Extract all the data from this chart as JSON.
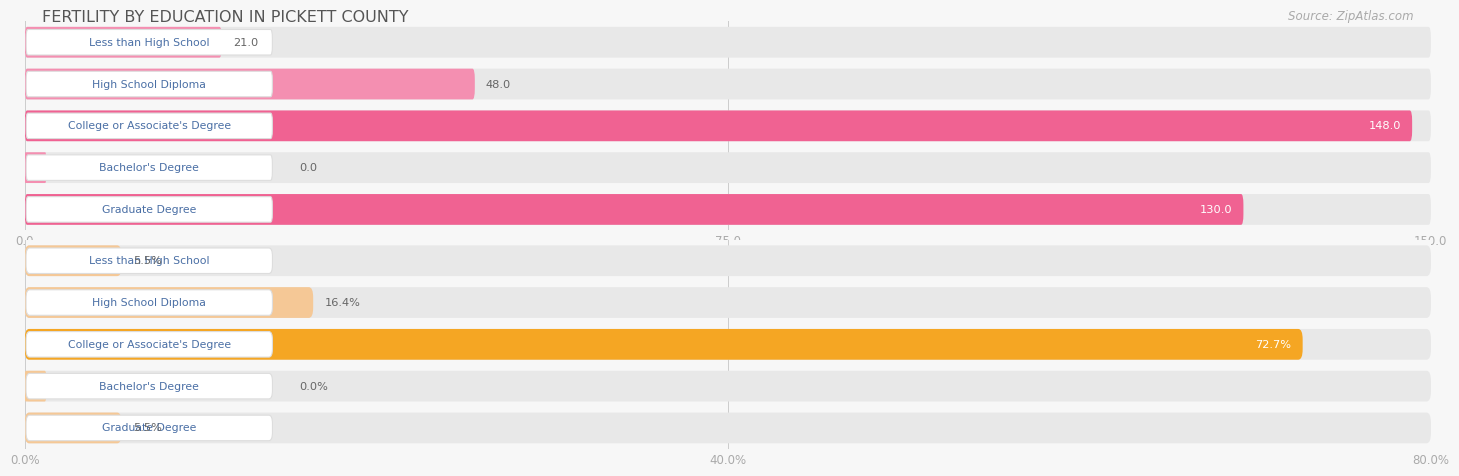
{
  "title": "FERTILITY BY EDUCATION IN PICKETT COUNTY",
  "source": "Source: ZipAtlas.com",
  "top_section": {
    "categories": [
      "Less than High School",
      "High School Diploma",
      "College or Associate's Degree",
      "Bachelor's Degree",
      "Graduate Degree"
    ],
    "values": [
      21.0,
      48.0,
      148.0,
      0.0,
      130.0
    ],
    "value_labels": [
      "21.0",
      "48.0",
      "148.0",
      "0.0",
      "130.0"
    ],
    "xlim": [
      0,
      150.0
    ],
    "xticks": [
      0.0,
      75.0,
      150.0
    ],
    "xtick_labels": [
      "0.0",
      "75.0",
      "150.0"
    ],
    "bar_colors": [
      "#f48fb1",
      "#f48fb1",
      "#f06292",
      "#f48fb1",
      "#f06292"
    ],
    "bar_bg_color": "#f0d0dc",
    "value_inside": [
      false,
      false,
      true,
      false,
      true
    ]
  },
  "bottom_section": {
    "categories": [
      "Less than High School",
      "High School Diploma",
      "College or Associate's Degree",
      "Bachelor's Degree",
      "Graduate Degree"
    ],
    "values": [
      5.5,
      16.4,
      72.7,
      0.0,
      5.5
    ],
    "value_labels": [
      "5.5%",
      "16.4%",
      "72.7%",
      "0.0%",
      "5.5%"
    ],
    "xlim": [
      0,
      80.0
    ],
    "xticks": [
      0.0,
      40.0,
      80.0
    ],
    "xtick_labels": [
      "0.0%",
      "40.0%",
      "80.0%"
    ],
    "bar_colors": [
      "#f5c896",
      "#f5c896",
      "#f5a623",
      "#f5c896",
      "#f5c896"
    ],
    "bar_bg_color": "#f0dcc0",
    "value_inside": [
      false,
      false,
      true,
      false,
      false
    ]
  },
  "bg_color": "#f7f7f7",
  "bar_row_bg": "#eeeeee",
  "label_box_color": "#ffffff",
  "label_text_color": "#4a6fa5",
  "title_color": "#555555",
  "value_text_color_outside": "#666666",
  "value_text_color_inside": "#ffffff"
}
